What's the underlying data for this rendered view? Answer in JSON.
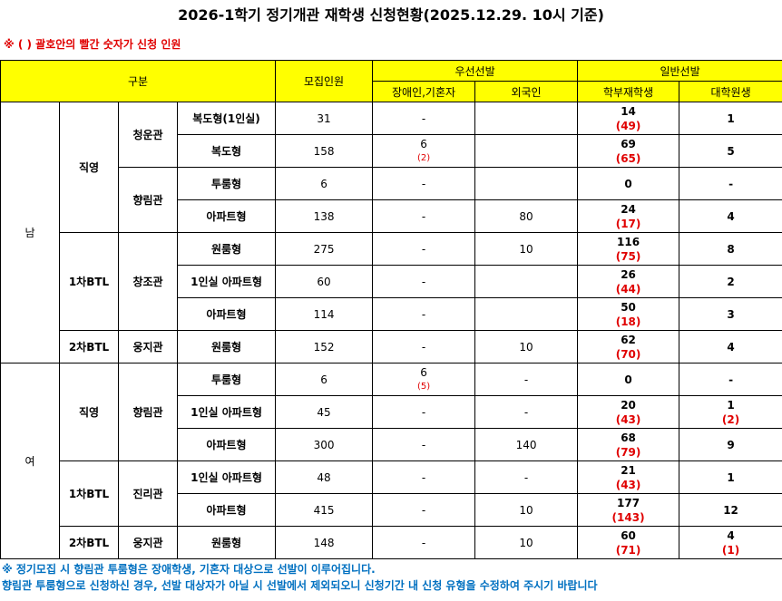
{
  "title": "2026-1학기 정기개관 재학생 신청현황(2025.12.29. 10시 기준)",
  "note": "※ ( ) 괄호안의 빨간 숫자가 신청 인원",
  "header": {
    "category": "구분",
    "quota": "모집인원",
    "priority": "우선선발",
    "disabled": "장애인,기혼자",
    "foreign": "외국인",
    "general": "일반선발",
    "undergrad": "학부재학생",
    "grad": "대학원생"
  },
  "groups": [
    {
      "gender": "남",
      "sections": [
        {
          "type": "직영",
          "buildings": [
            {
              "name": "청운관",
              "rooms": [
                {
                  "room": "복도형(1인실)",
                  "quota": 31,
                  "disabled": {
                    "value": "-"
                  },
                  "foreign": null,
                  "undergrad": {
                    "value": 14,
                    "applied": "(49)"
                  },
                  "grad": {
                    "value": 1
                  }
                },
                {
                  "room": "복도형",
                  "quota": 158,
                  "disabled": {
                    "value": 6,
                    "applied": "(2)"
                  },
                  "foreign": null,
                  "undergrad": {
                    "value": 69,
                    "applied": "(65)"
                  },
                  "grad": {
                    "value": 5
                  }
                }
              ]
            },
            {
              "name": "향림관",
              "rooms": [
                {
                  "room": "투룸형",
                  "quota": 6,
                  "disabled": {
                    "value": "-"
                  },
                  "foreign": null,
                  "undergrad": {
                    "value": 0
                  },
                  "grad": {
                    "value": "-"
                  }
                },
                {
                  "room": "아파트형",
                  "quota": 138,
                  "disabled": {
                    "value": "-"
                  },
                  "foreign": 80,
                  "undergrad": {
                    "value": 24,
                    "applied": "(17)"
                  },
                  "grad": {
                    "value": 4
                  }
                }
              ]
            }
          ]
        },
        {
          "type": "1차BTL",
          "buildings": [
            {
              "name": "창조관",
              "rooms": [
                {
                  "room": "원룸형",
                  "quota": 275,
                  "disabled": {
                    "value": "-"
                  },
                  "foreign": 10,
                  "undergrad": {
                    "value": 116,
                    "applied": "(75)"
                  },
                  "grad": {
                    "value": 8
                  }
                },
                {
                  "room": "1인실 아파트형",
                  "quota": 60,
                  "disabled": {
                    "value": "-"
                  },
                  "foreign": null,
                  "undergrad": {
                    "value": 26,
                    "applied": "(44)"
                  },
                  "grad": {
                    "value": 2
                  }
                },
                {
                  "room": "아파트형",
                  "quota": 114,
                  "disabled": {
                    "value": "-"
                  },
                  "foreign": null,
                  "undergrad": {
                    "value": 50,
                    "applied": "(18)"
                  },
                  "grad": {
                    "value": 3
                  }
                }
              ]
            }
          ]
        },
        {
          "type": "2차BTL",
          "buildings": [
            {
              "name": "웅지관",
              "rooms": [
                {
                  "room": "원룸형",
                  "quota": 152,
                  "disabled": {
                    "value": "-"
                  },
                  "foreign": 10,
                  "undergrad": {
                    "value": 62,
                    "applied": "(70)"
                  },
                  "grad": {
                    "value": 4
                  }
                }
              ]
            }
          ]
        }
      ]
    },
    {
      "gender": "여",
      "sections": [
        {
          "type": "직영",
          "buildings": [
            {
              "name": "향림관",
              "rooms": [
                {
                  "room": "투룸형",
                  "quota": 6,
                  "disabled": {
                    "value": 6,
                    "applied": "(5)"
                  },
                  "foreign": "-",
                  "undergrad": {
                    "value": 0
                  },
                  "grad": {
                    "value": "-"
                  }
                },
                {
                  "room": "1인실 아파트형",
                  "quota": 45,
                  "disabled": {
                    "value": "-"
                  },
                  "foreign": "-",
                  "undergrad": {
                    "value": 20,
                    "applied": "(43)"
                  },
                  "grad": {
                    "value": 1,
                    "applied": "(2)"
                  }
                },
                {
                  "room": "아파트형",
                  "quota": 300,
                  "disabled": {
                    "value": "-"
                  },
                  "foreign": 140,
                  "undergrad": {
                    "value": 68,
                    "applied": "(79)"
                  },
                  "grad": {
                    "value": 9
                  }
                }
              ]
            }
          ]
        },
        {
          "type": "1차BTL",
          "buildings": [
            {
              "name": "진리관",
              "rooms": [
                {
                  "room": "1인실 아파트형",
                  "quota": 48,
                  "disabled": {
                    "value": "-"
                  },
                  "foreign": "-",
                  "undergrad": {
                    "value": 21,
                    "applied": "(43)"
                  },
                  "grad": {
                    "value": 1
                  }
                },
                {
                  "room": "아파트형",
                  "quota": 415,
                  "disabled": {
                    "value": "-"
                  },
                  "foreign": 10,
                  "undergrad": {
                    "value": 177,
                    "applied": "(143)"
                  },
                  "grad": {
                    "value": 12
                  }
                }
              ]
            }
          ]
        },
        {
          "type": "2차BTL",
          "buildings": [
            {
              "name": "웅지관",
              "rooms": [
                {
                  "room": "원룸형",
                  "quota": 148,
                  "disabled": {
                    "value": "-"
                  },
                  "foreign": 10,
                  "undergrad": {
                    "value": 60,
                    "applied": "(71)"
                  },
                  "grad": {
                    "value": 4,
                    "applied": "(1)"
                  }
                }
              ]
            }
          ]
        }
      ]
    }
  ],
  "footer": [
    "※ 정기모집 시 향림관 투룸형은 장애학생, 기혼자 대상으로 선발이 이루어집니다.",
    "향림관 투룸형으로 신청하신 경우, 선발 대상자가 아닐 시 선발에서 제외되오니 신청기간 내 신청 유형을 수정하여 주시기 바랍니다"
  ]
}
